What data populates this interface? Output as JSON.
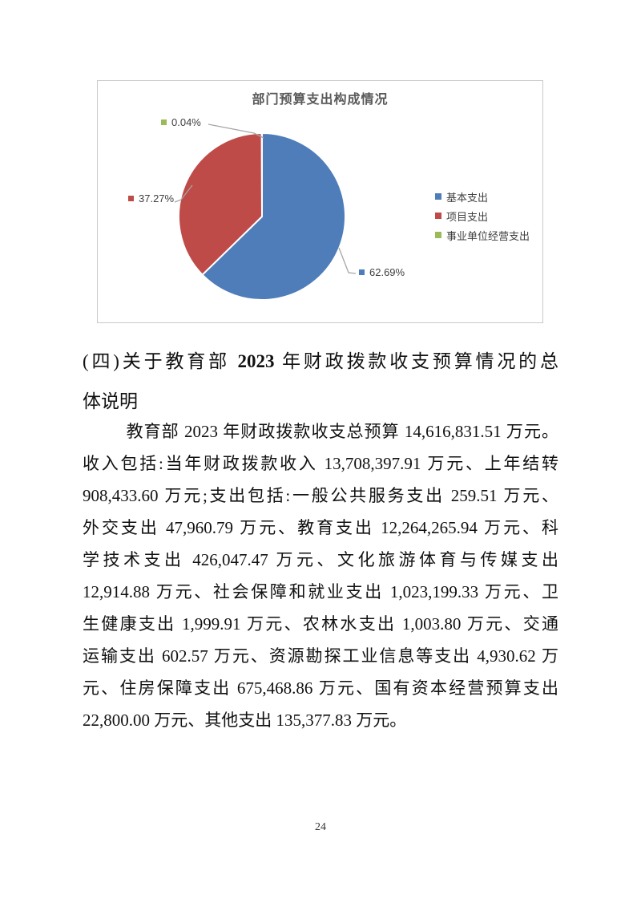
{
  "chart_data": {
    "type": "pie",
    "title": "部门预算支出构成情况",
    "categories": [
      "基本支出",
      "项目支出",
      "事业单位经营支出"
    ],
    "values": [
      62.69,
      37.27,
      0.04
    ],
    "labels": [
      "62.69%",
      "37.27%",
      "0.04%"
    ],
    "colors": [
      "#4E7DBA",
      "#BE4B48",
      "#9BBB59"
    ],
    "unit": "%",
    "legend_position": "right",
    "start_angle": "top",
    "direction": "clockwise"
  },
  "heading": {
    "prefix": "(四)关于教育部 ",
    "year": "2023",
    "suffix": " 年财政拨款收支预算情况的总",
    "line2": "体说明"
  },
  "paragraph": {
    "lines": [
      "教育部 2023 年财政拨款收支总预算 14,616,831.51 万元。",
      "收入包括:当年财政拨款收入 13,708,397.91 万元、上年结转",
      "908,433.60 万元;支出包括:一般公共服务支出 259.51 万元、",
      "外交支出 47,960.79 万元、教育支出 12,264,265.94 万元、科",
      "学技术支出 426,047.47 万元、文化旅游体育与传媒支出",
      "12,914.88 万元、社会保障和就业支出 1,023,199.33 万元、卫",
      "生健康支出 1,999.91 万元、农林水支出 1,003.80 万元、交通",
      "运输支出 602.57 万元、资源勘探工业信息等支出 4,930.62 万",
      "元、住房保障支出 675,468.86 万元、国有资本经营预算支出",
      "22,800.00 万元、其他支出 135,377.83 万元。"
    ]
  },
  "footer": {
    "page_number": "24"
  }
}
